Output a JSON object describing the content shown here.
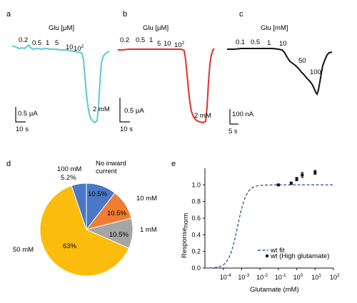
{
  "figure": {
    "panel_letters": [
      "a",
      "b",
      "c",
      "d",
      "e"
    ],
    "colors": {
      "trace_a": "#5bc8d8",
      "trace_b": "#e0302a",
      "trace_c": "#111111",
      "fit": "#3a5fa6"
    }
  },
  "chart_data": [
    {
      "panel": "a",
      "type": "line",
      "title": "Glu [µM]",
      "concentration_labels": [
        "0.2",
        "0.5",
        "1",
        "5",
        "10",
        "10²"
      ],
      "annotation": "2 mM",
      "scalebar": {
        "y": "0.5 µA",
        "x": "10 s"
      }
    },
    {
      "panel": "b",
      "type": "line",
      "title": "Glu [µM]",
      "concentration_labels": [
        "0.2",
        "0.5",
        "1",
        "5",
        "10",
        "10²"
      ],
      "annotation": "2 mM",
      "scalebar": {
        "y": "0.5 µA",
        "x": "10 s"
      }
    },
    {
      "panel": "c",
      "type": "line",
      "title": "Glu [mM]",
      "concentration_labels": [
        "0.1",
        "0.5",
        "1",
        "10",
        "50",
        "100"
      ],
      "scalebar": {
        "y": "100 nA",
        "x": "5 s"
      }
    },
    {
      "panel": "d",
      "type": "pie",
      "slices": [
        {
          "name": "No inward current",
          "value": 10.5,
          "label": "10.5%",
          "color": "#4a78c6"
        },
        {
          "name": "10 mM",
          "value": 10.5,
          "label": "10.5%",
          "color": "#ef7d31"
        },
        {
          "name": "1 mM",
          "value": 10.5,
          "label": "10.5%",
          "color": "#a5a5a5"
        },
        {
          "name": "50 mM",
          "value": 63,
          "label": "63%",
          "color": "#fbbc0e"
        },
        {
          "name": "100 mM",
          "value": 5.2,
          "label": "5.2%",
          "color": "#4a78c6"
        }
      ]
    },
    {
      "panel": "e",
      "type": "scatter",
      "xlabel": "Glutamate (mM)",
      "ylabel": "Response",
      "ylabel_sub": "norm",
      "xscale": "log",
      "xlim": [
        1e-05,
        100
      ],
      "ylim": [
        0,
        1.2
      ],
      "xticks": [
        {
          "base": "10",
          "exp": "-4",
          "value": 0.0001
        },
        {
          "base": "10",
          "exp": "-3",
          "value": 0.001
        },
        {
          "base": "10",
          "exp": "-2",
          "value": 0.01
        },
        {
          "base": "10",
          "exp": "-1",
          "value": 0.1
        },
        {
          "base": "10",
          "exp": "0",
          "value": 1
        },
        {
          "base": "10",
          "exp": "1",
          "value": 10
        },
        {
          "base": "10",
          "exp": "2",
          "value": 100
        }
      ],
      "yticks": [
        "0.0",
        "0.2",
        "0.4",
        "0.6",
        "0.8",
        "1.0"
      ],
      "fit": {
        "name": "wt fit",
        "ec50": 0.0006,
        "hill": 1.8
      },
      "points": {
        "name": "wt (High glutamate)",
        "x": [
          0.1,
          0.5,
          1,
          2,
          10
        ],
        "y": [
          1.0,
          1.02,
          1.07,
          1.12,
          1.15
        ],
        "err": [
          0.01,
          0.015,
          0.02,
          0.03,
          0.025
        ]
      },
      "legend": [
        "wt fit",
        "wt (High glutamate)"
      ]
    }
  ]
}
